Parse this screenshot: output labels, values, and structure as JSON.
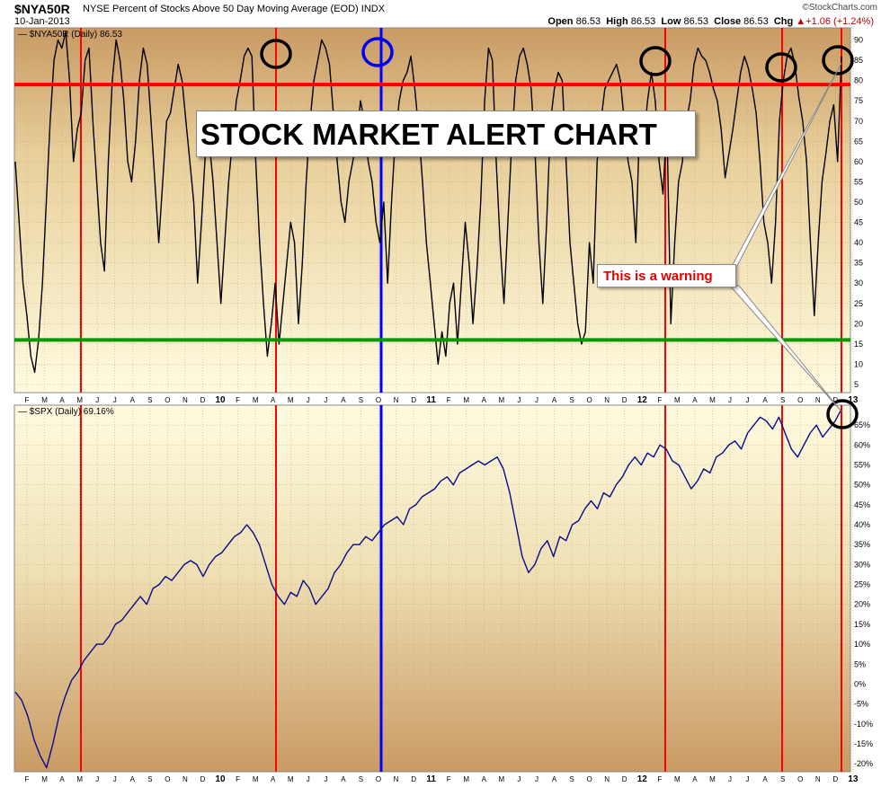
{
  "header": {
    "symbol": "$NYA50R",
    "description": "NYSE Percent of Stocks Above 50 Day Moving Average (EOD)  INDX",
    "date": "10-Jan-2013",
    "watermark": "©StockCharts.com",
    "ohlc": {
      "open_label": "Open",
      "open": "86.53",
      "high_label": "High",
      "high": "86.53",
      "low_label": "Low",
      "low": "86.53",
      "close_label": "Close",
      "close": "86.53",
      "chg_label": "Chg",
      "chg": "+1.06 (+1.24%)",
      "chg_arrow": "▲"
    }
  },
  "annotations": {
    "title_box": "STOCK MARKET ALERT CHART",
    "warning_box": "This is a warning"
  },
  "colors": {
    "nya_line": "#000000",
    "spx_line": "#0a0a8c",
    "red_line": "#ff0000",
    "green_line": "#009900",
    "blue_line": "#0000ff",
    "circle_black": "#000000",
    "circle_blue": "#0000ee",
    "bg_light": "#fdf8dc",
    "bg_dark": "#d4aa78"
  },
  "chart_data": [
    {
      "type": "line",
      "legend": "$NYA50R (Daily) 86.53",
      "ylim": [
        3,
        93
      ],
      "yticks": [
        5,
        10,
        15,
        20,
        25,
        30,
        35,
        40,
        45,
        50,
        55,
        60,
        65,
        70,
        75,
        80,
        85,
        90
      ],
      "hlines": [
        {
          "value": 79,
          "color": "red"
        },
        {
          "value": 16,
          "color": "green"
        }
      ],
      "series": [
        {
          "name": "$NYA50R",
          "values": [
            60,
            45,
            30,
            22,
            12,
            8,
            16,
            30,
            50,
            70,
            85,
            90,
            88,
            92,
            80,
            60,
            68,
            72,
            85,
            88,
            70,
            55,
            40,
            33,
            60,
            80,
            90,
            85,
            75,
            60,
            55,
            65,
            80,
            88,
            84,
            70,
            55,
            40,
            55,
            70,
            72,
            78,
            84,
            80,
            70,
            60,
            50,
            30,
            45,
            62,
            65,
            55,
            40,
            25,
            40,
            55,
            65,
            75,
            80,
            86,
            88,
            86,
            60,
            40,
            25,
            12,
            20,
            30,
            15,
            25,
            35,
            45,
            40,
            20,
            35,
            55,
            70,
            80,
            85,
            90,
            88,
            84,
            72,
            60,
            50,
            45,
            55,
            60,
            65,
            75,
            70,
            60,
            55,
            45,
            40,
            50,
            30,
            50,
            66,
            75,
            80,
            82,
            86,
            78,
            68,
            55,
            40,
            30,
            20,
            10,
            18,
            12,
            25,
            30,
            15,
            30,
            45,
            35,
            20,
            33,
            50,
            75,
            88,
            85,
            60,
            40,
            25,
            45,
            65,
            80,
            86,
            88,
            84,
            78,
            62,
            40,
            25,
            45,
            70,
            78,
            82,
            80,
            60,
            40,
            30,
            20,
            15,
            18,
            40,
            30,
            60,
            70,
            78,
            80,
            82,
            84,
            80,
            70,
            60,
            55,
            40,
            70,
            65,
            75,
            82,
            75,
            60,
            52,
            70,
            20,
            40,
            55,
            60,
            70,
            75,
            84,
            88,
            86,
            85,
            82,
            78,
            75,
            68,
            56,
            62,
            68,
            75,
            82,
            86,
            83,
            78,
            72,
            60,
            45,
            40,
            30,
            45,
            70,
            80,
            86,
            88,
            84,
            76,
            70,
            60,
            40,
            22,
            40,
            55,
            62,
            70,
            74,
            60,
            86
          ]
        }
      ],
      "x_ticks": [
        "F",
        "M",
        "A",
        "M",
        "J",
        "J",
        "A",
        "S",
        "O",
        "N",
        "D",
        "10",
        "F",
        "M",
        "A",
        "M",
        "J",
        "J",
        "A",
        "S",
        "O",
        "N",
        "D",
        "11",
        "F",
        "M",
        "A",
        "M",
        "J",
        "J",
        "A",
        "S",
        "O",
        "N",
        "D",
        "12",
        "F",
        "M",
        "A",
        "M",
        "J",
        "J",
        "A",
        "S",
        "O",
        "N",
        "D",
        "13"
      ]
    },
    {
      "type": "line",
      "legend": "$SPX (Daily) 69.16%",
      "ylim": [
        -22,
        70
      ],
      "yticks": [
        -20,
        -15,
        -10,
        -5,
        0,
        5,
        10,
        15,
        20,
        25,
        30,
        35,
        40,
        45,
        50,
        55,
        60,
        65
      ],
      "y_unit": "%",
      "series": [
        {
          "name": "$SPX",
          "values": [
            -2,
            -4,
            -8,
            -14,
            -18,
            -21,
            -15,
            -8,
            -3,
            1,
            3,
            6,
            8,
            10,
            10,
            12,
            15,
            16,
            18,
            20,
            22,
            20,
            24,
            25,
            27,
            26,
            28,
            30,
            31,
            30,
            27,
            30,
            32,
            33,
            35,
            37,
            38,
            40,
            38,
            35,
            30,
            25,
            22,
            20,
            23,
            22,
            26,
            24,
            20,
            22,
            24,
            28,
            30,
            33,
            35,
            35,
            37,
            36,
            38,
            40,
            41,
            42,
            40,
            44,
            45,
            47,
            48,
            49,
            51,
            52,
            50,
            53,
            54,
            55,
            56,
            55,
            56,
            57,
            54,
            48,
            40,
            32,
            28,
            30,
            34,
            36,
            32,
            37,
            36,
            40,
            41,
            44,
            46,
            44,
            48,
            47,
            50,
            52,
            55,
            57,
            55,
            58,
            57,
            60,
            59,
            56,
            55,
            52,
            49,
            51,
            54,
            53,
            57,
            58,
            60,
            61,
            59,
            63,
            65,
            67,
            66,
            64,
            67,
            63,
            59,
            57,
            60,
            63,
            65,
            62,
            64,
            66,
            69
          ]
        }
      ],
      "x_ticks": [
        "F",
        "M",
        "A",
        "M",
        "J",
        "J",
        "A",
        "S",
        "O",
        "N",
        "D",
        "10",
        "F",
        "M",
        "A",
        "M",
        "J",
        "J",
        "A",
        "S",
        "O",
        "N",
        "D",
        "11",
        "F",
        "M",
        "A",
        "M",
        "J",
        "J",
        "A",
        "S",
        "O",
        "N",
        "D",
        "12",
        "F",
        "M",
        "A",
        "M",
        "J",
        "J",
        "A",
        "S",
        "O",
        "N",
        "D",
        "13"
      ]
    }
  ]
}
